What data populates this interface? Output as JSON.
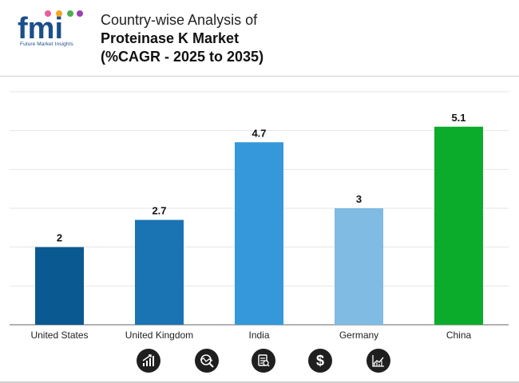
{
  "header": {
    "logo_text": "fmi",
    "logo_tagline": "Future Market Insights",
    "title_line1": "Country-wise Analysis of",
    "title_line2": "Proteinase K Market",
    "title_line3": "(%CAGR - 2025 to 2035)"
  },
  "chart_data": {
    "type": "bar",
    "categories": [
      "United States",
      "United Kingdom",
      "India",
      "Germany",
      "China"
    ],
    "values": [
      2,
      2.7,
      4.7,
      3,
      5.1
    ],
    "value_labels": [
      "2",
      "2.7",
      "4.7",
      "3",
      "5.1"
    ],
    "colors": [
      "#0a5a91",
      "#1a73b3",
      "#3498db",
      "#7fbbe3",
      "#0bab2b"
    ],
    "ylim": [
      0,
      6
    ],
    "grid": true,
    "title": "",
    "xlabel": "",
    "ylabel": ""
  },
  "footer_icons": [
    "growth-chart-icon",
    "analysis-icon",
    "report-icon",
    "dollar-icon",
    "trend-chart-icon"
  ]
}
